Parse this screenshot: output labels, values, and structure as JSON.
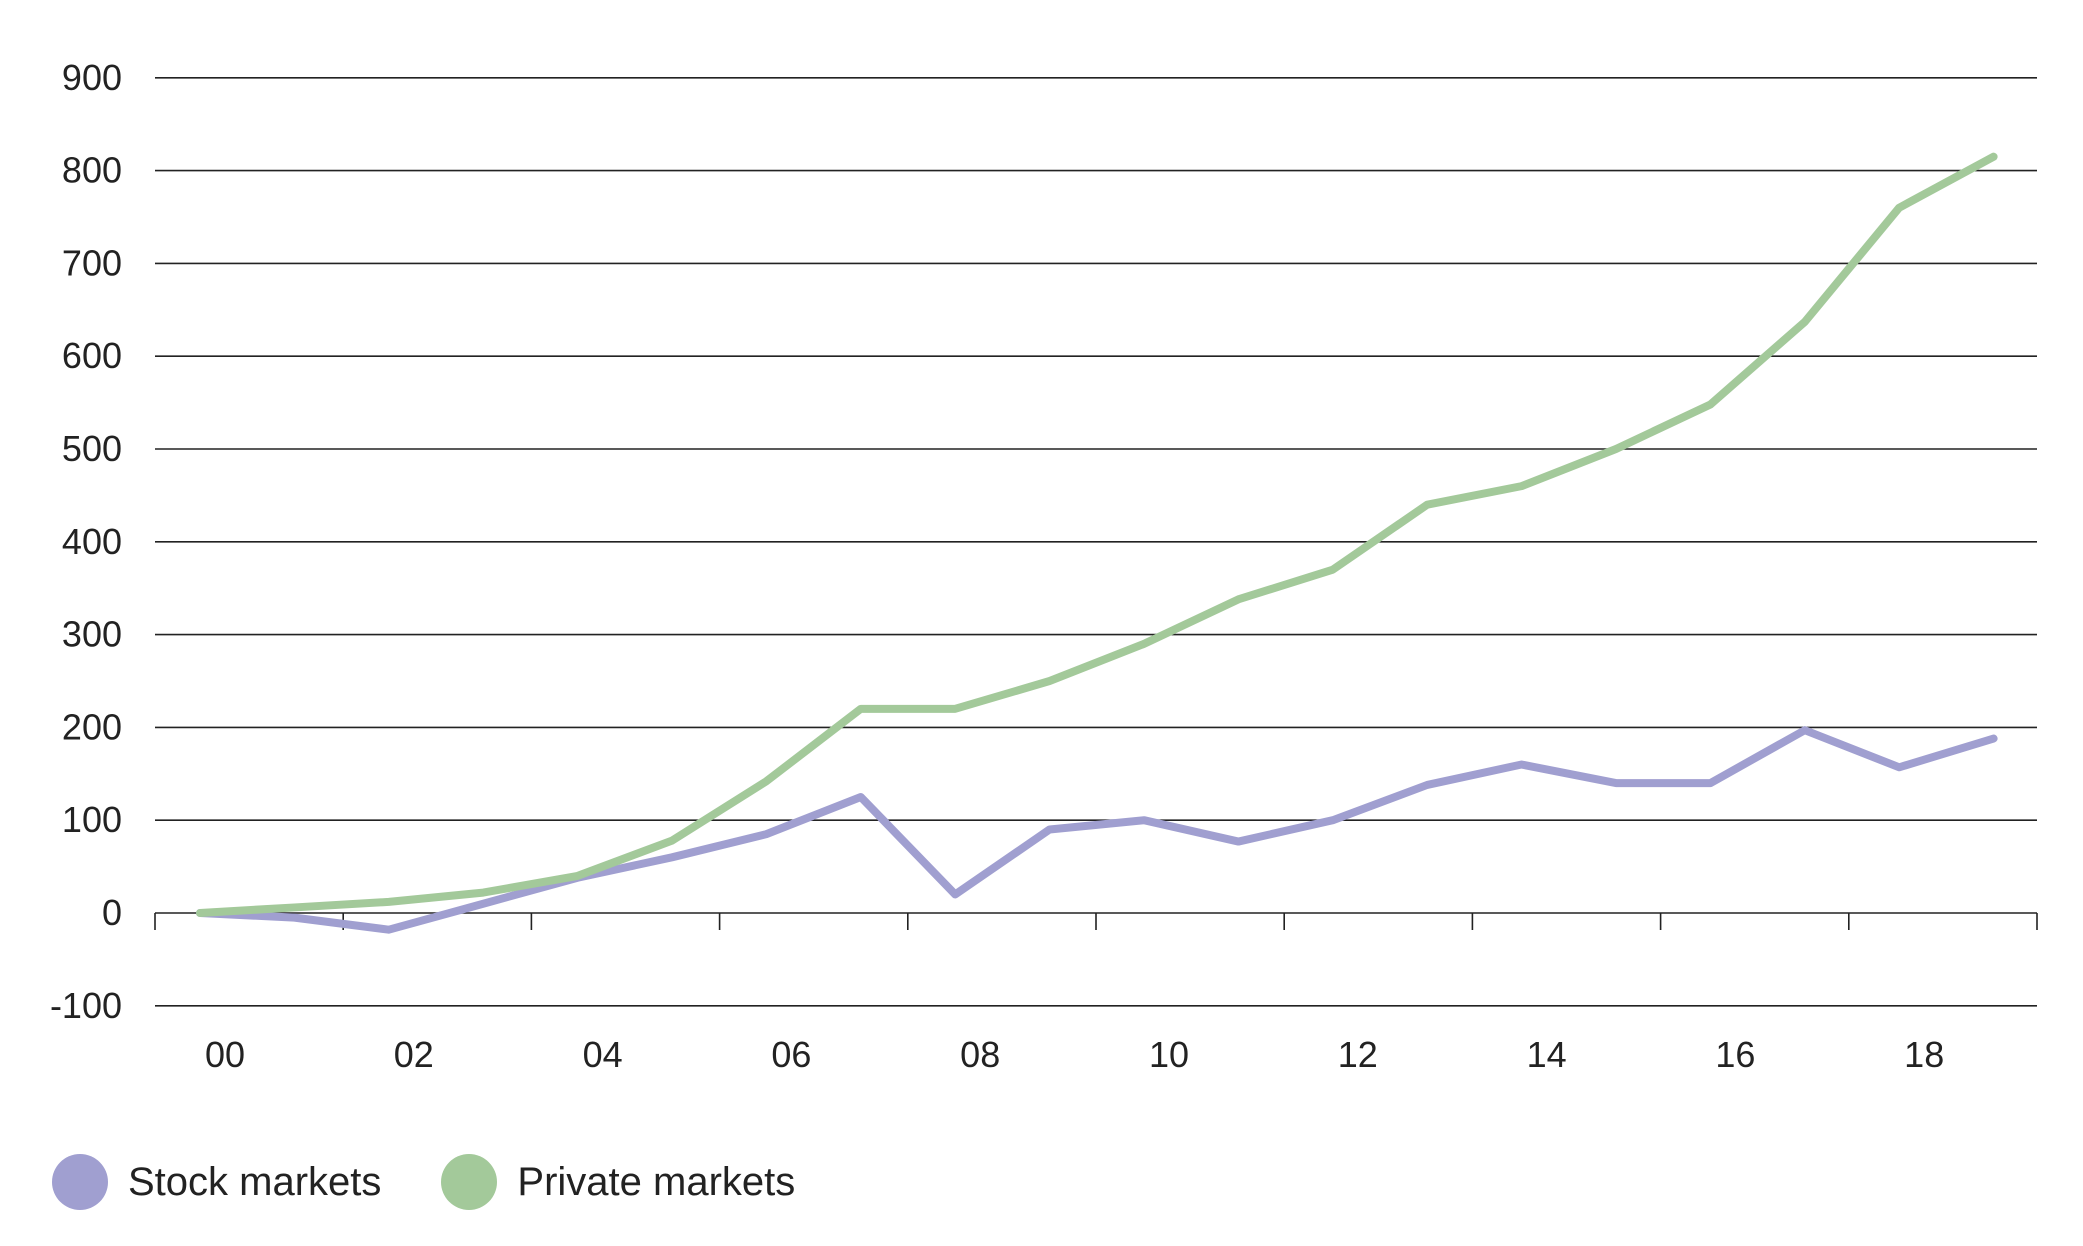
{
  "chart_data": {
    "type": "line",
    "x": [
      "00",
      "01",
      "02",
      "03",
      "04",
      "05",
      "06",
      "07",
      "08",
      "09",
      "10",
      "11",
      "12",
      "13",
      "14",
      "15",
      "16",
      "17",
      "18",
      "19"
    ],
    "x_tick_labels": [
      "00",
      "02",
      "04",
      "06",
      "08",
      "10",
      "12",
      "14",
      "16",
      "18"
    ],
    "ylim": [
      -100,
      900
    ],
    "y_ticks": [
      -100,
      0,
      100,
      200,
      300,
      400,
      500,
      600,
      700,
      800,
      900
    ],
    "y_tick_labels": [
      "-100",
      "0",
      "100",
      "200",
      "300",
      "400",
      "500",
      "600",
      "700",
      "800",
      "900"
    ],
    "grid": true,
    "legend_position": "bottom-left",
    "series": [
      {
        "name": "Stock markets",
        "color": "#a09fd0",
        "values": [
          0,
          -5,
          -18,
          10,
          38,
          60,
          85,
          125,
          20,
          90,
          100,
          77,
          100,
          138,
          160,
          140,
          140,
          197,
          157,
          188
        ]
      },
      {
        "name": "Private markets",
        "color": "#a3c99a",
        "values": [
          0,
          6,
          12,
          22,
          40,
          78,
          142,
          220,
          220,
          250,
          290,
          338,
          370,
          440,
          460,
          500,
          548,
          637,
          760,
          815
        ]
      }
    ],
    "colors": {
      "grid": "#222222",
      "text": "#222222"
    }
  }
}
